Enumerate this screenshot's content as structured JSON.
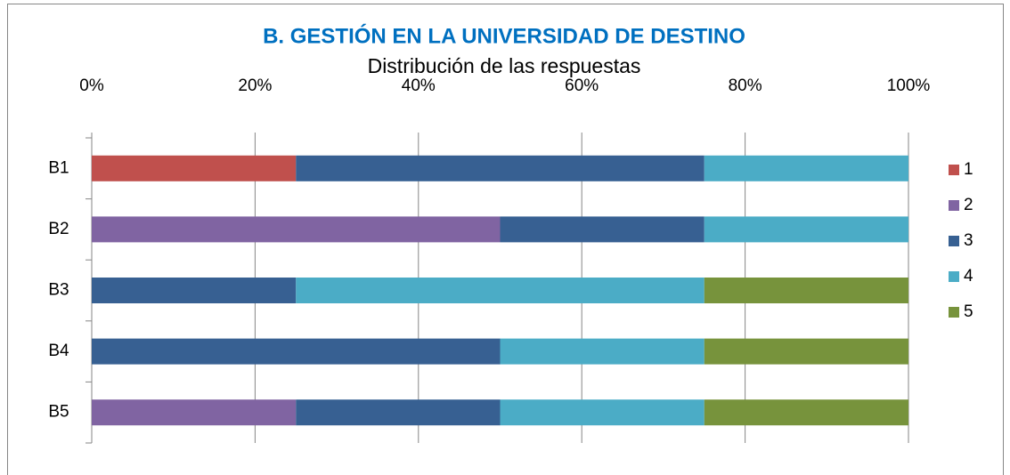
{
  "chart_data": {
    "type": "stacked-bar-horizontal",
    "title": "B.  GESTIÓN EN LA UNIVERSIDAD DE DESTINO",
    "subtitle": "Distribución de las respuestas",
    "categories": [
      "B1",
      "B2",
      "B3",
      "B4",
      "B5"
    ],
    "series": [
      {
        "name": "1",
        "color": "#c0504d",
        "values": [
          25,
          0,
          0,
          0,
          0
        ]
      },
      {
        "name": "2",
        "color": "#8064a2",
        "values": [
          0,
          50,
          0,
          0,
          25
        ]
      },
      {
        "name": "3",
        "color": "#376092",
        "values": [
          50,
          25,
          25,
          50,
          25
        ]
      },
      {
        "name": "4",
        "color": "#4bacc6",
        "values": [
          25,
          25,
          50,
          25,
          25
        ]
      },
      {
        "name": "5",
        "color": "#77933c",
        "values": [
          0,
          0,
          25,
          25,
          25
        ]
      }
    ],
    "xlim": [
      0,
      100
    ],
    "xticks": [
      {
        "value": 0,
        "label": "0%"
      },
      {
        "value": 20,
        "label": "20%"
      },
      {
        "value": 40,
        "label": "40%"
      },
      {
        "value": 60,
        "label": "60%"
      },
      {
        "value": 80,
        "label": "80%"
      },
      {
        "value": 100,
        "label": "100%"
      }
    ],
    "grid": true,
    "legend": "right"
  }
}
